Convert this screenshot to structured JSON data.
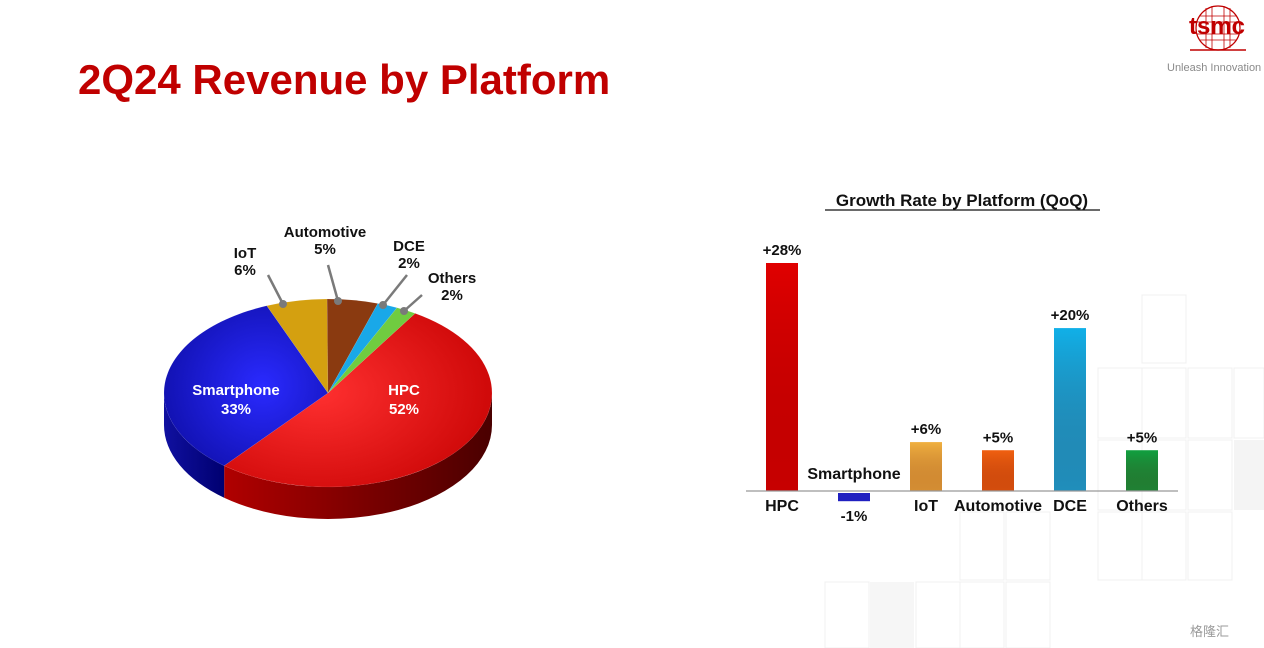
{
  "slide": {
    "title": "2Q24 Revenue by Platform",
    "logo_text": "tsmc",
    "tagline": "Unleash Innovation",
    "watermark": "格隆汇"
  },
  "chart_data": [
    {
      "type": "pie",
      "title": "",
      "slices": [
        {
          "label": "HPC",
          "value": 52,
          "display": "52%",
          "color": "#e60000"
        },
        {
          "label": "Smartphone",
          "value": 33,
          "display": "33%",
          "color": "#1010d0"
        },
        {
          "label": "IoT",
          "value": 6,
          "display": "6%",
          "color": "#d4a010"
        },
        {
          "label": "Automotive",
          "value": 5,
          "display": "5%",
          "color": "#8a3a10"
        },
        {
          "label": "DCE",
          "value": 2,
          "display": "2%",
          "color": "#19a8e8"
        },
        {
          "label": "Others",
          "value": 2,
          "display": "2%",
          "color": "#70cc40"
        }
      ]
    },
    {
      "type": "bar",
      "title": "Growth Rate by Platform (QoQ)",
      "categories": [
        "HPC",
        "Smartphone",
        "IoT",
        "Automotive",
        "DCE",
        "Others"
      ],
      "values": [
        28,
        -1,
        6,
        5,
        20,
        5
      ],
      "value_labels": [
        "+28%",
        "-1%",
        "+6%",
        "+5%",
        "+20%",
        "+5%"
      ],
      "colors": [
        "#e00000",
        "#2020c0",
        "#f0b040",
        "#f06010",
        "#10b0e8",
        "#10a040"
      ],
      "ylim": [
        -1,
        28
      ],
      "grid": false
    }
  ]
}
